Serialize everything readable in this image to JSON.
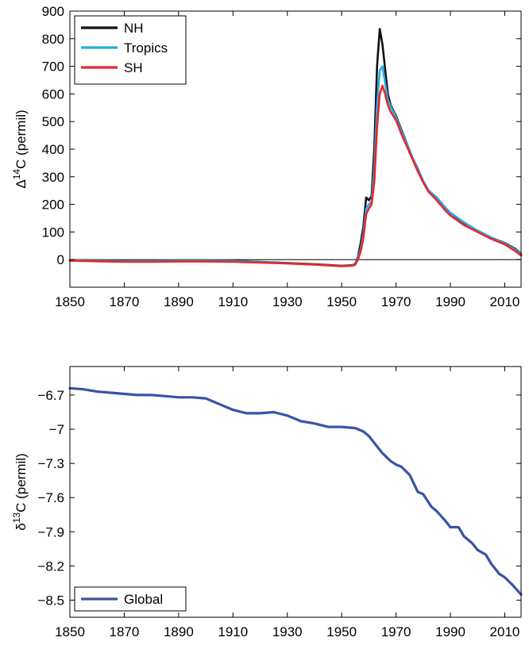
{
  "chart_data": [
    {
      "type": "line",
      "ylabel": {
        "prefix": "Δ",
        "sup": "14",
        "suffix": "C (permil)"
      },
      "xlim": [
        1850,
        2016
      ],
      "ylim": [
        -100,
        900
      ],
      "xticks": [
        1850,
        1870,
        1890,
        1910,
        1930,
        1950,
        1970,
        1990,
        2010
      ],
      "yticks": [
        0,
        100,
        200,
        300,
        400,
        500,
        600,
        700,
        800,
        900
      ],
      "zero_line": true,
      "grid": false,
      "legend_position": "top-left",
      "series": [
        {
          "name": "NH",
          "color": "#111111",
          "x": [
            1850,
            1860,
            1870,
            1880,
            1890,
            1900,
            1910,
            1920,
            1930,
            1940,
            1950,
            1954,
            1955,
            1956,
            1957,
            1958,
            1959,
            1960,
            1961,
            1962,
            1963,
            1964,
            1965,
            1966,
            1967,
            1968,
            1969,
            1970,
            1972,
            1974,
            1976,
            1978,
            1980,
            1982,
            1985,
            1988,
            1990,
            1995,
            2000,
            2005,
            2010,
            2014,
            2016
          ],
          "y": [
            -2,
            -3,
            -4,
            -4,
            -3,
            -3,
            -4,
            -8,
            -12,
            -17,
            -22,
            -20,
            -15,
            10,
            60,
            120,
            225,
            215,
            230,
            400,
            700,
            835,
            780,
            690,
            600,
            560,
            540,
            520,
            470,
            420,
            370,
            330,
            280,
            250,
            220,
            180,
            160,
            130,
            105,
            80,
            60,
            38,
            20
          ]
        },
        {
          "name": "Tropics",
          "color": "#29abe2",
          "x": [
            1850,
            1860,
            1870,
            1880,
            1890,
            1900,
            1910,
            1920,
            1930,
            1940,
            1950,
            1954,
            1955,
            1956,
            1957,
            1958,
            1959,
            1960,
            1961,
            1962,
            1963,
            1964,
            1965,
            1966,
            1967,
            1968,
            1969,
            1970,
            1972,
            1974,
            1976,
            1978,
            1980,
            1982,
            1985,
            1988,
            1990,
            1995,
            2000,
            2005,
            2010,
            2014,
            2016
          ],
          "y": [
            -3,
            -4,
            -5,
            -5,
            -4,
            -4,
            -5,
            -9,
            -13,
            -18,
            -23,
            -21,
            -16,
            5,
            40,
            95,
            185,
            200,
            210,
            330,
            560,
            685,
            700,
            640,
            580,
            555,
            535,
            515,
            465,
            420,
            370,
            330,
            285,
            250,
            225,
            190,
            170,
            135,
            105,
            80,
            58,
            35,
            18
          ]
        },
        {
          "name": "SH",
          "color": "#e8262a",
          "x": [
            1850,
            1860,
            1870,
            1880,
            1890,
            1900,
            1910,
            1920,
            1930,
            1940,
            1950,
            1954,
            1955,
            1956,
            1957,
            1958,
            1959,
            1960,
            1961,
            1962,
            1963,
            1964,
            1965,
            1966,
            1967,
            1968,
            1969,
            1970,
            1972,
            1974,
            1976,
            1978,
            1980,
            1982,
            1985,
            1988,
            1990,
            1995,
            2000,
            2005,
            2010,
            2014,
            2016
          ],
          "y": [
            -4,
            -6,
            -8,
            -8,
            -7,
            -7,
            -8,
            -11,
            -14,
            -18,
            -24,
            -22,
            -18,
            0,
            30,
            80,
            165,
            185,
            200,
            280,
            480,
            600,
            630,
            600,
            560,
            535,
            520,
            505,
            455,
            410,
            365,
            320,
            280,
            245,
            215,
            180,
            160,
            125,
            100,
            75,
            55,
            30,
            15
          ]
        }
      ]
    },
    {
      "type": "line",
      "ylabel": {
        "prefix": "δ",
        "sup": "13",
        "suffix": "C (permil)"
      },
      "xlim": [
        1850,
        2016
      ],
      "ylim": [
        -8.65,
        -6.45
      ],
      "xticks": [
        1850,
        1870,
        1890,
        1910,
        1930,
        1950,
        1970,
        1990,
        2010
      ],
      "yticks": [
        -6.7,
        -7,
        -7.3,
        -7.6,
        -7.9,
        -8.2,
        -8.5
      ],
      "ytick_labels": [
        "−6.7",
        "−7",
        "−7.3",
        "−7.6",
        "−7.9",
        "−8.2",
        "−8.5"
      ],
      "grid": false,
      "legend_position": "bottom-left",
      "series": [
        {
          "name": "Global",
          "color": "#3a53a4",
          "x": [
            1850,
            1855,
            1860,
            1865,
            1870,
            1875,
            1880,
            1885,
            1890,
            1895,
            1900,
            1905,
            1910,
            1915,
            1920,
            1925,
            1930,
            1935,
            1940,
            1945,
            1950,
            1955,
            1958,
            1960,
            1962,
            1965,
            1968,
            1970,
            1972,
            1975,
            1978,
            1980,
            1983,
            1985,
            1988,
            1990,
            1993,
            1995,
            1998,
            2000,
            2003,
            2005,
            2008,
            2010,
            2013,
            2016
          ],
          "y": [
            -6.64,
            -6.65,
            -6.67,
            -6.68,
            -6.69,
            -6.7,
            -6.7,
            -6.71,
            -6.72,
            -6.72,
            -6.73,
            -6.78,
            -6.83,
            -6.86,
            -6.86,
            -6.85,
            -6.88,
            -6.93,
            -6.95,
            -6.98,
            -6.98,
            -6.99,
            -7.02,
            -7.06,
            -7.12,
            -7.21,
            -7.28,
            -7.31,
            -7.33,
            -7.4,
            -7.55,
            -7.57,
            -7.68,
            -7.72,
            -7.8,
            -7.86,
            -7.86,
            -7.94,
            -8.0,
            -8.06,
            -8.1,
            -8.18,
            -8.27,
            -8.3,
            -8.37,
            -8.45
          ]
        }
      ]
    }
  ]
}
